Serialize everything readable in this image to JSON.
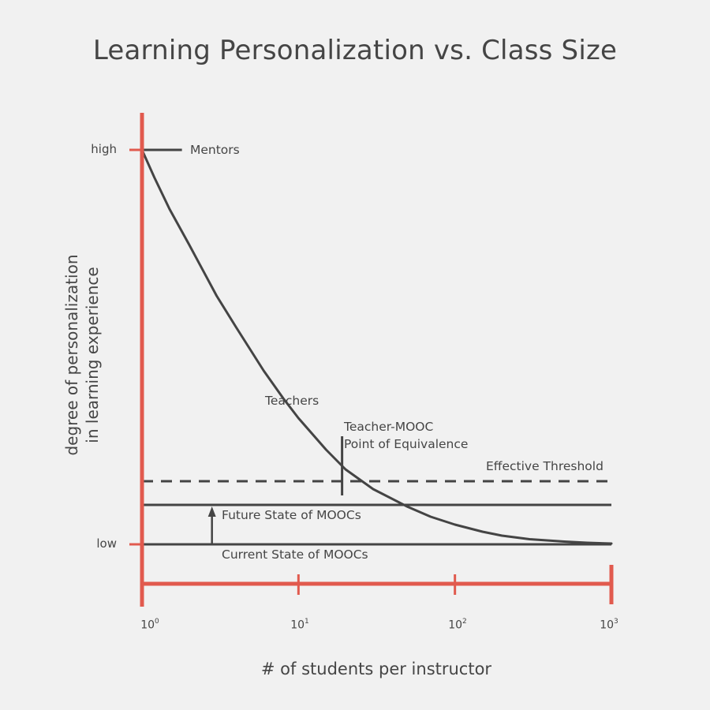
{
  "chart_data": {
    "type": "line",
    "title": "Learning Personalization vs. Class Size",
    "xlabel": "# of students per instructor",
    "ylabel_lines": [
      "degree of personalization",
      "in learning experience"
    ],
    "x_scale": "log",
    "xlim": [
      1,
      1000
    ],
    "x_ticks": [
      {
        "value": 1,
        "base": "10",
        "exp": "0"
      },
      {
        "value": 10,
        "base": "10",
        "exp": "1"
      },
      {
        "value": 100,
        "base": "10",
        "exp": "2"
      },
      {
        "value": 1000,
        "base": "10",
        "exp": "3"
      }
    ],
    "ylim": [
      0,
      1
    ],
    "y_ticks": [
      {
        "value": 1,
        "label": "high"
      },
      {
        "value": 0,
        "label": "low"
      }
    ],
    "series": [
      {
        "name": "Teachers",
        "style": "curve",
        "x": [
          1,
          1.2,
          1.5,
          2,
          3,
          4,
          6,
          8,
          10,
          15,
          20,
          30,
          50,
          70,
          100,
          150,
          200,
          300,
          500,
          700,
          1000
        ],
        "y": [
          1.0,
          0.93,
          0.85,
          0.76,
          0.63,
          0.55,
          0.44,
          0.37,
          0.32,
          0.24,
          0.19,
          0.14,
          0.095,
          0.07,
          0.05,
          0.032,
          0.022,
          0.013,
          0.007,
          0.004,
          0.002
        ]
      },
      {
        "name": "Mentors",
        "style": "solid",
        "x": [
          1,
          1.8
        ],
        "y": [
          1,
          1
        ]
      },
      {
        "name": "Effective Threshold",
        "style": "dashed",
        "x": [
          1,
          1000
        ],
        "y": [
          0.16,
          0.16
        ]
      },
      {
        "name": "Future State of MOOCs",
        "style": "solid",
        "x": [
          1,
          1000
        ],
        "y": [
          0.1,
          0.1
        ]
      },
      {
        "name": "Current State of MOOCs",
        "style": "solid",
        "x": [
          1,
          1000
        ],
        "y": [
          0,
          0
        ]
      }
    ],
    "annotations": [
      {
        "text": "Mentors",
        "x": 1.85,
        "y": 1.0
      },
      {
        "text": "Teachers",
        "x": 6.3,
        "y": 0.37
      },
      {
        "lines": [
          "Teacher-MOOC",
          "Point of Equivalence"
        ],
        "x": 19,
        "y": 0.16
      },
      {
        "text": "Effective Threshold",
        "x": 1000,
        "y": 0.16
      },
      {
        "text": "Future State of MOOCs",
        "x": 3,
        "y": 0.1
      },
      {
        "text": "Current State of MOOCs",
        "x": 3,
        "y": 0.0
      }
    ],
    "arrow": {
      "x": 2.8,
      "from_y": 0,
      "to_y": 0.1
    },
    "colors": {
      "axis": "#e15a4e",
      "line": "#444444",
      "text": "#454545",
      "background": "#f1f1f1"
    }
  }
}
